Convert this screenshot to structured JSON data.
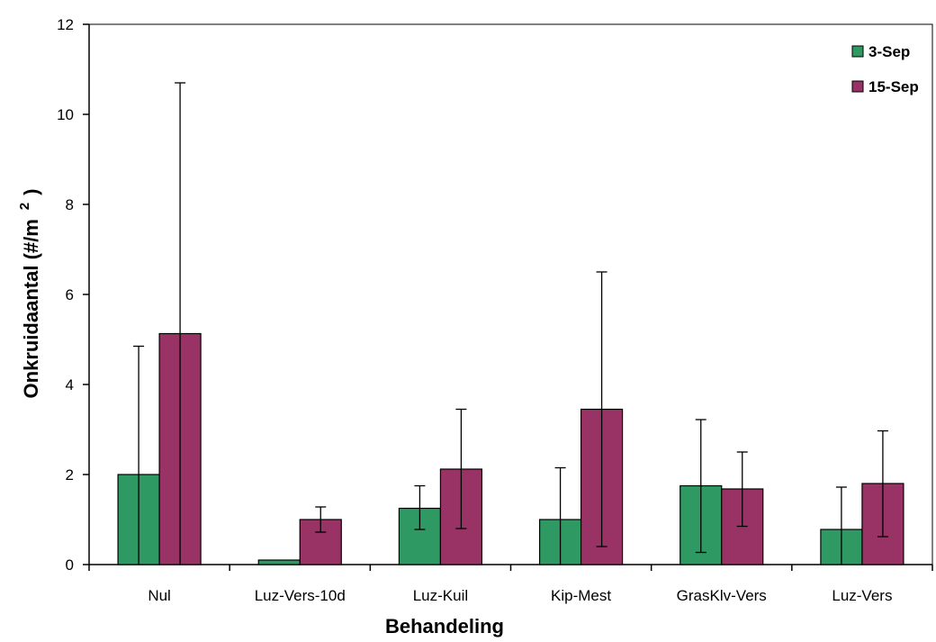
{
  "chart_data": {
    "type": "bar",
    "title": "",
    "xlabel": "Behandeling",
    "ylabel_main": "Onkruidaantal (#/m",
    "ylabel_sup": "2",
    "ylabel_close": ")",
    "ylim": [
      0,
      12
    ],
    "yticks": [
      0,
      2,
      4,
      6,
      8,
      10,
      12
    ],
    "categories": [
      "Nul",
      "Luz-Vers-10d",
      "Luz-Kuil",
      "Kip-Mest",
      "GrasKlv-Vers",
      "Luz-Vers"
    ],
    "series": [
      {
        "name": "3-Sep",
        "color": "#2e9963",
        "values": [
          2.0,
          0.1,
          1.25,
          1.0,
          1.75,
          0.78
        ],
        "err_high": [
          4.85,
          null,
          1.75,
          2.15,
          3.22,
          1.72
        ],
        "err_low": [
          0.0,
          null,
          0.78,
          0.0,
          0.27,
          0.0
        ]
      },
      {
        "name": "15-Sep",
        "color": "#993366",
        "values": [
          5.13,
          1.0,
          2.12,
          3.45,
          1.68,
          1.8
        ],
        "err_high": [
          10.7,
          1.28,
          3.45,
          6.5,
          2.5,
          2.97
        ],
        "err_low": [
          0.0,
          0.72,
          0.8,
          0.4,
          0.85,
          0.62
        ]
      }
    ],
    "legend_position": "top-right",
    "grid": false
  }
}
